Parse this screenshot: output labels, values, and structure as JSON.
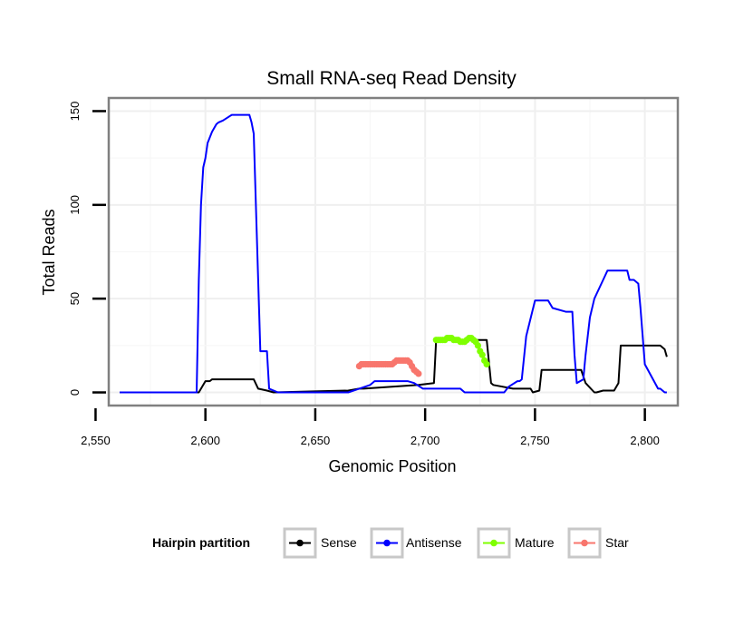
{
  "chart_data": {
    "type": "line",
    "title": "Small RNA-seq Read Density",
    "xlabel": "Genomic Position",
    "ylabel": "Total Reads",
    "xlim": [
      2556,
      2815
    ],
    "ylim": [
      -7,
      157
    ],
    "x_ticks": [
      2550,
      2600,
      2650,
      2700,
      2750,
      2800
    ],
    "x_tick_labels": [
      "2,550",
      "2,600",
      "2,650",
      "2,700",
      "2,750",
      "2,800"
    ],
    "y_ticks": [
      0,
      50,
      100,
      150
    ],
    "y_tick_labels": [
      "0",
      "50",
      "100",
      "150"
    ],
    "grid": true,
    "legend": {
      "title": "Hairpin partition",
      "position": "bottom",
      "entries": [
        "Sense",
        "Antisense",
        "Mature",
        "Star"
      ]
    },
    "series": [
      {
        "name": "Sense",
        "style": "line",
        "color": "#000000",
        "x": [
          2561,
          2597,
          2600,
          2602,
          2603,
          2622,
          2624,
          2628,
          2631,
          2665,
          2670,
          2672,
          2697,
          2704,
          2705,
          2728,
          2730,
          2731,
          2740,
          2748,
          2749,
          2752,
          2753,
          2771,
          2773,
          2777,
          2778,
          2781,
          2786,
          2788,
          2789,
          2807,
          2808,
          2809,
          2810
        ],
        "y": [
          0,
          0,
          6,
          6,
          7,
          7,
          2,
          1,
          0,
          1,
          2,
          2,
          4,
          5,
          28,
          28,
          5,
          4,
          2,
          2,
          0,
          1,
          12,
          12,
          5,
          0,
          0,
          1,
          1,
          5,
          25,
          25,
          24,
          23,
          19
        ]
      },
      {
        "name": "Antisense",
        "style": "line",
        "color": "#0000ff",
        "x": [
          2561,
          2596,
          2597,
          2598,
          2599,
          2600,
          2601,
          2603,
          2605,
          2606,
          2608,
          2612,
          2614,
          2617,
          2620,
          2621,
          2622,
          2625,
          2627,
          2628,
          2629,
          2633,
          2665,
          2670,
          2675,
          2677,
          2692,
          2695,
          2699,
          2716,
          2718,
          2736,
          2738,
          2742,
          2743,
          2744,
          2746,
          2750,
          2756,
          2758,
          2764,
          2765,
          2767,
          2768,
          2769,
          2772,
          2773,
          2775,
          2777,
          2781,
          2783,
          2785,
          2789,
          2792,
          2793,
          2795,
          2797,
          2798,
          2800,
          2806,
          2807,
          2809,
          2810
        ],
        "y": [
          0,
          0,
          60,
          100,
          120,
          125,
          133,
          139,
          143,
          144,
          145,
          148,
          148,
          148,
          148,
          144,
          138,
          22,
          22,
          22,
          2,
          0,
          0,
          2,
          4,
          6,
          6,
          5,
          2,
          2,
          0,
          0,
          3,
          6,
          6,
          7,
          30,
          49,
          49,
          45,
          43,
          43,
          43,
          20,
          5,
          7,
          20,
          40,
          50,
          60,
          65,
          65,
          65,
          65,
          60,
          60,
          58,
          45,
          15,
          2,
          2,
          0,
          0
        ]
      },
      {
        "name": "Mature",
        "style": "dots",
        "color": "#7fff00",
        "x": [
          2705,
          2706,
          2707,
          2708,
          2709,
          2710,
          2711,
          2712,
          2713,
          2714,
          2715,
          2716,
          2717,
          2718,
          2719,
          2720,
          2721,
          2722,
          2723,
          2724,
          2725,
          2726,
          2727,
          2728
        ],
        "y": [
          28,
          28,
          28,
          28,
          28,
          29,
          29,
          29,
          28,
          28,
          28,
          27,
          27,
          27,
          28,
          29,
          29,
          28,
          27,
          25,
          22,
          20,
          17,
          15
        ]
      },
      {
        "name": "Star",
        "style": "dots",
        "color": "#f8766d",
        "x": [
          2670,
          2671,
          2672,
          2673,
          2674,
          2675,
          2676,
          2677,
          2678,
          2679,
          2680,
          2681,
          2682,
          2683,
          2684,
          2685,
          2686,
          2687,
          2688,
          2689,
          2690,
          2691,
          2692,
          2693,
          2694,
          2695,
          2696,
          2697
        ],
        "y": [
          14,
          15,
          15,
          15,
          15,
          15,
          15,
          15,
          15,
          15,
          15,
          15,
          15,
          15,
          15,
          15,
          16,
          17,
          17,
          17,
          17,
          17,
          17,
          16,
          14,
          12,
          11,
          10
        ]
      }
    ]
  }
}
